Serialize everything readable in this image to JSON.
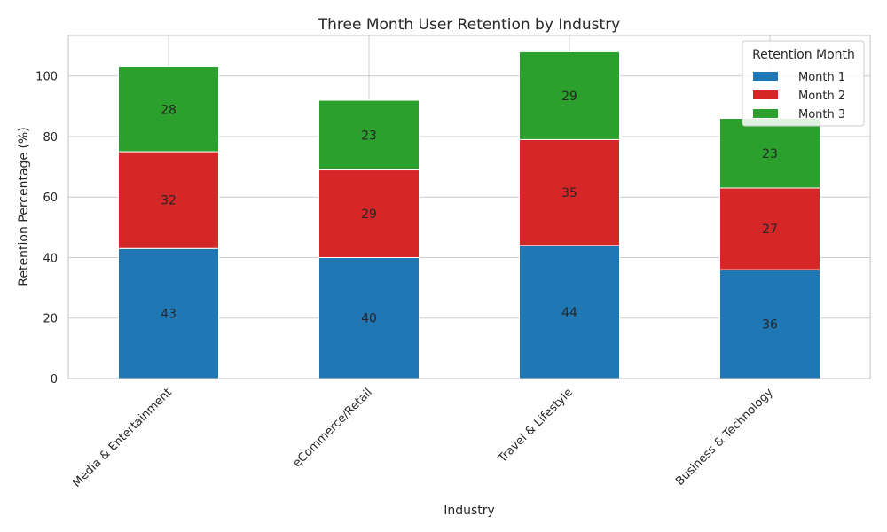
{
  "chart_data": {
    "type": "bar",
    "stacked": true,
    "title": "Three Month User Retention by Industry",
    "xlabel": "Industry",
    "ylabel": "Retention Percentage (%)",
    "categories": [
      "Media & Entertainment",
      "eCommerce/Retail",
      "Travel & Lifestyle",
      "Business & Technology"
    ],
    "series": [
      {
        "name": "Month 1",
        "values": [
          43,
          40,
          44,
          36
        ],
        "color": "#1f77b4"
      },
      {
        "name": "Month 2",
        "values": [
          32,
          29,
          35,
          27
        ],
        "color": "#d62728"
      },
      {
        "name": "Month 3",
        "values": [
          28,
          23,
          29,
          23
        ],
        "color": "#2ca02c"
      }
    ],
    "ylim": [
      0,
      113.4
    ],
    "yticks": [
      0,
      20,
      40,
      60,
      80,
      100
    ],
    "grid": true,
    "legend": {
      "title": "Retention Month",
      "placement": "top-right"
    }
  }
}
